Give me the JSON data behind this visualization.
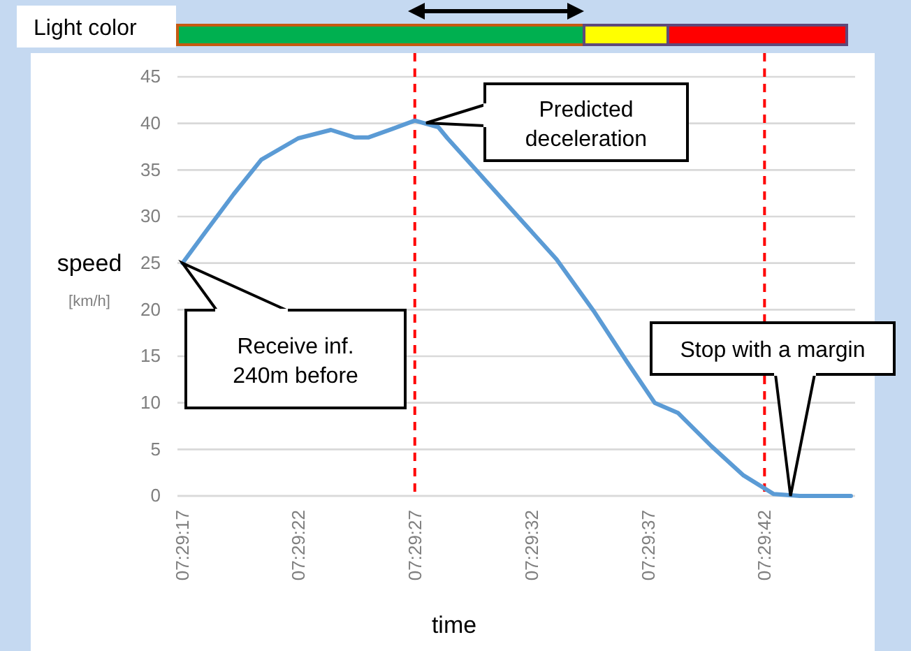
{
  "chart_data": {
    "type": "line",
    "xlabel": "time",
    "ylabel": "speed$_{[km/h]}$",
    "x": [
      7.48806,
      7.48833,
      7.48867,
      7.489,
      7.48944,
      7.48983,
      7.49011,
      7.49028,
      7.49056,
      7.49083,
      7.49111,
      7.49122,
      7.49162,
      7.49212,
      7.49252,
      7.49296,
      7.49336,
      7.49369,
      7.49397,
      7.49436,
      7.49475,
      7.49511,
      7.49542,
      7.49603
    ],
    "series": [
      {
        "color": "#5b9bd5",
        "values": [
          25,
          28.3,
          32.4,
          36.1,
          38.4,
          39.3,
          38.5,
          38.5,
          39.4,
          40.3,
          39.6,
          38.4,
          34.4,
          29.4,
          25.4,
          19.9,
          14.4,
          10,
          8.9,
          5.4,
          2.2,
          0.2,
          0,
          0
        ]
      }
    ],
    "xlim": [
      7.488,
      7.49608
    ],
    "xticks": [
      {
        "value": 7.48806,
        "label": "07:29:17"
      },
      {
        "value": 7.48944,
        "label": "07:29:22"
      },
      {
        "value": 7.49083,
        "label": "07:29:27"
      },
      {
        "value": 7.49222,
        "label": "07:29:32"
      },
      {
        "value": 7.49361,
        "label": "07:29:37"
      },
      {
        "value": 7.495,
        "label": "07:29:42"
      }
    ],
    "ylim": [
      0,
      45
    ],
    "yticks": [
      0,
      5,
      10,
      15,
      20,
      25,
      30,
      35,
      40,
      45
    ],
    "grid": "y",
    "marker": "none",
    "line_style": "solid",
    "ref_lines": [
      {
        "axis": "x",
        "value": 7.49083,
        "color": "#ff0000",
        "line_style": "dashed"
      },
      {
        "axis": "x",
        "value": 7.495,
        "color": "#ff0000",
        "line_style": "dashed"
      }
    ],
    "annotations": [
      "Light color",
      {
        "text": "Receive inf.\n240m before",
        "x": 7.48806,
        "y": 25
      },
      "Predicted\ndeceleration",
      {
        "text": "Stop with a margin",
        "x": 7.49531,
        "y": 0
      }
    ]
  }
}
